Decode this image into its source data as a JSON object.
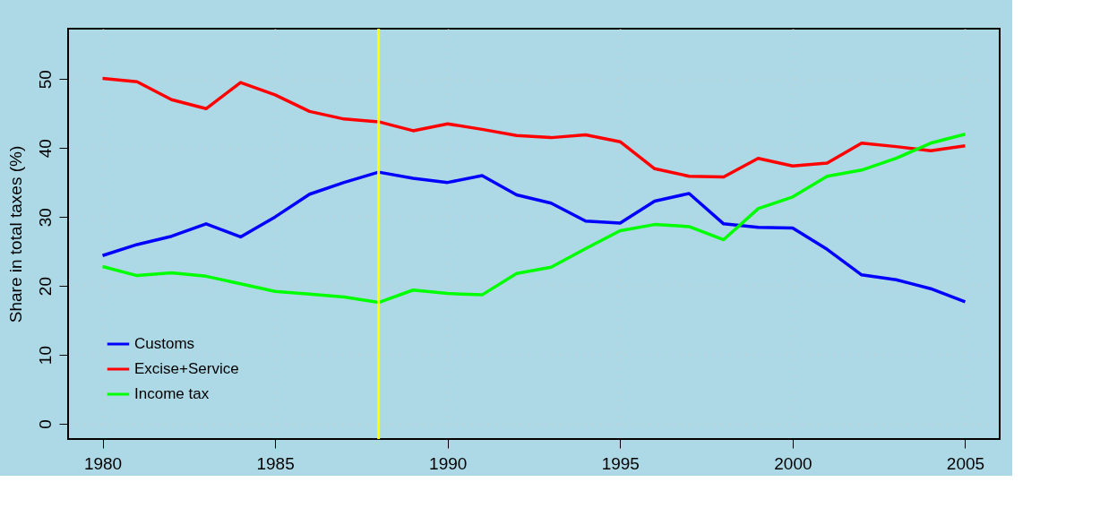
{
  "chart_data": {
    "type": "line",
    "ylabel": "Share in total taxes (%)",
    "x": [
      1980,
      1981,
      1982,
      1983,
      1984,
      1985,
      1986,
      1987,
      1988,
      1989,
      1990,
      1991,
      1992,
      1993,
      1994,
      1995,
      1996,
      1997,
      1998,
      1999,
      2000,
      2001,
      2002,
      2003,
      2004,
      2005
    ],
    "series": [
      {
        "name": "Customs",
        "color": "#0000ff",
        "values": [
          24.4,
          26.0,
          27.2,
          29.0,
          27.1,
          30.0,
          33.3,
          35.0,
          36.5,
          35.6,
          35.0,
          36.0,
          33.2,
          32.0,
          29.4,
          29.1,
          32.3,
          33.4,
          29.0,
          28.5,
          28.4,
          25.3,
          21.6,
          20.9,
          19.6,
          17.7
        ]
      },
      {
        "name": "Excise+Service",
        "color": "#ff0000",
        "values": [
          50.1,
          49.6,
          47.0,
          45.7,
          49.5,
          47.7,
          45.3,
          44.2,
          43.8,
          42.5,
          43.5,
          42.7,
          41.8,
          41.5,
          41.9,
          40.9,
          37.0,
          35.9,
          35.8,
          38.5,
          37.4,
          37.8,
          40.7,
          40.2,
          39.6,
          40.3
        ]
      },
      {
        "name": "Income tax",
        "color": "#00ff00",
        "values": [
          22.8,
          21.5,
          21.9,
          21.4,
          20.3,
          19.2,
          18.8,
          18.4,
          17.6,
          19.4,
          18.9,
          18.7,
          21.8,
          22.7,
          25.4,
          28.0,
          28.9,
          28.6,
          26.7,
          31.2,
          32.9,
          35.9,
          36.8,
          38.5,
          40.7,
          42.0
        ]
      }
    ],
    "xlim": [
      1979,
      2006
    ],
    "xticks": [
      1980,
      1985,
      1990,
      1995,
      2000,
      2005
    ],
    "ylim": [
      -2.2,
      57.3
    ],
    "yticks": [
      0,
      10,
      20,
      30,
      40,
      50
    ],
    "ref_lines": [
      {
        "axis": "x",
        "value": 1988,
        "color": "#ffff00"
      }
    ],
    "grid": true,
    "legend": "bottom left",
    "line_style": "solid",
    "marker": "none"
  }
}
